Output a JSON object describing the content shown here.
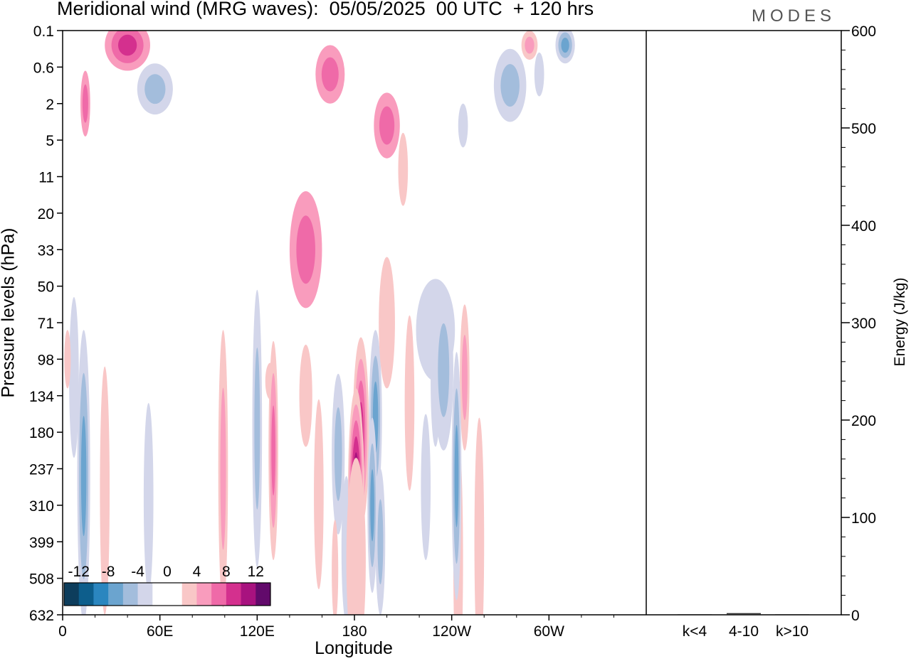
{
  "title": "Meridional wind (MRG waves):  05/05/2025  00 UTC  + 120 hrs",
  "logo": "MODES",
  "chart_data": {
    "type": "heatmap",
    "xlabel": "Longitude",
    "ylabel": "Pressure levels (hPa)",
    "y2label": "Energy (J/kg)",
    "x_ticks": [
      "0",
      "60E",
      "120E",
      "180",
      "120W",
      "60W"
    ],
    "y_ticks": [
      "0.1",
      "0.6",
      "2",
      "5",
      "11",
      "20",
      "33",
      "50",
      "71",
      "98",
      "134",
      "180",
      "237",
      "310",
      "399",
      "508",
      "632"
    ],
    "y2_ticks": [
      "0",
      "100",
      "200",
      "300",
      "400",
      "500",
      "600"
    ],
    "y2_range": [
      0,
      600
    ],
    "energy_categories": [
      "k<4",
      "4-10",
      "k>10"
    ],
    "energy_values": [
      0,
      1,
      0
    ],
    "colorbar": {
      "labels": [
        "-12",
        "-8",
        "-4",
        "0",
        "4",
        "8",
        "12"
      ],
      "colors": [
        "#0d3d5c",
        "#0d5e8c",
        "#2b86bf",
        "#6ba4cf",
        "#a3bddc",
        "#d3d6ea",
        "#ffffff",
        "#ffffff",
        "#f9c7c7",
        "#f99cbd",
        "#ef6aa8",
        "#d4308e",
        "#a8127f",
        "#620a6b"
      ]
    },
    "blobs": [
      {
        "x": 14,
        "y": 2,
        "rx": 3,
        "ry": 0.9,
        "levels": [
          2,
          3
        ]
      },
      {
        "x": 150,
        "y": 6,
        "rx": 10,
        "ry": 1.6,
        "levels": [
          2,
          3
        ]
      },
      {
        "x": 165,
        "y": 1.2,
        "rx": 9,
        "ry": 0.8,
        "levels": [
          2,
          3
        ]
      },
      {
        "x": 200,
        "y": 2.6,
        "rx": 8,
        "ry": 0.9,
        "levels": [
          2,
          3
        ]
      },
      {
        "x": 210,
        "y": 3.8,
        "rx": 3,
        "ry": 1,
        "levels": [
          1
        ]
      },
      {
        "x": 128,
        "y": 9.6,
        "rx": 3,
        "ry": 0.5,
        "levels": [
          1
        ]
      },
      {
        "x": 247,
        "y": 2.6,
        "rx": 3,
        "ry": 0.6,
        "levels": [
          -1
        ]
      },
      {
        "x": 276,
        "y": 1.5,
        "rx": 10,
        "ry": 1.0,
        "levels": [
          -1,
          -2
        ]
      },
      {
        "x": 288,
        "y": 0.4,
        "rx": 5,
        "ry": 0.4,
        "levels": [
          1,
          2
        ]
      },
      {
        "x": 294,
        "y": 1.2,
        "rx": 3,
        "ry": 0.6,
        "levels": [
          -1
        ]
      },
      {
        "x": 310,
        "y": 0.4,
        "rx": 6,
        "ry": 0.5,
        "levels": [
          -1,
          -2,
          -3
        ]
      },
      {
        "x": 230,
        "y": 8.2,
        "rx": 12,
        "ry": 1.4,
        "levels": [
          -1
        ]
      },
      {
        "x": 40,
        "y": 0.4,
        "rx": 14,
        "ry": 0.7,
        "levels": [
          2,
          3,
          4
        ]
      },
      {
        "x": 57,
        "y": 1.6,
        "rx": 11,
        "ry": 0.7,
        "levels": [
          -1,
          -2
        ]
      },
      {
        "x": 7,
        "y": 9.5,
        "rx": 3,
        "ry": 2.2,
        "levels": [
          -1
        ]
      },
      {
        "x": 3,
        "y": 9,
        "rx": 2,
        "ry": 0.8,
        "levels": [
          1
        ]
      },
      {
        "x": 13,
        "y": 12.2,
        "rx": 4,
        "ry": 4,
        "levels": [
          -1,
          -2,
          -3
        ]
      },
      {
        "x": 26,
        "y": 12.6,
        "rx": 3,
        "ry": 3.4,
        "levels": [
          1
        ]
      },
      {
        "x": 53,
        "y": 12.8,
        "rx": 3,
        "ry": 2.6,
        "levels": [
          -1
        ]
      },
      {
        "x": 99,
        "y": 12,
        "rx": 3,
        "ry": 3.8,
        "levels": [
          1,
          2
        ]
      },
      {
        "x": 120,
        "y": 10.9,
        "rx": 3,
        "ry": 3.8,
        "levels": [
          -1,
          -2
        ]
      },
      {
        "x": 130,
        "y": 11.5,
        "rx": 3,
        "ry": 3,
        "levels": [
          1,
          2,
          3
        ]
      },
      {
        "x": 150,
        "y": 10,
        "rx": 4,
        "ry": 1.4,
        "levels": [
          1
        ]
      },
      {
        "x": 158,
        "y": 12.7,
        "rx": 3,
        "ry": 2.6,
        "levels": [
          1
        ]
      },
      {
        "x": 170,
        "y": 11.6,
        "rx": 4,
        "ry": 2.2,
        "levels": [
          -1,
          -2
        ]
      },
      {
        "x": 175,
        "y": 14.2,
        "rx": 3,
        "ry": 2,
        "levels": [
          -1
        ]
      },
      {
        "x": 184,
        "y": 11,
        "rx": 5,
        "ry": 2.6,
        "levels": [
          1,
          2,
          3,
          4
        ]
      },
      {
        "x": 181,
        "y": 12.6,
        "rx": 5,
        "ry": 2.8,
        "levels": [
          1,
          2,
          3,
          4,
          5,
          6
        ]
      },
      {
        "x": 181,
        "y": 14.5,
        "rx": 6,
        "ry": 2.8,
        "levels": [
          1
        ]
      },
      {
        "x": 193,
        "y": 10.6,
        "rx": 4,
        "ry": 2.4,
        "levels": [
          -1,
          -2,
          -3
        ]
      },
      {
        "x": 196,
        "y": 14,
        "rx": 3,
        "ry": 2,
        "levels": [
          -1,
          -2
        ]
      },
      {
        "x": 191,
        "y": 13,
        "rx": 3,
        "ry": 2.4,
        "levels": [
          -1,
          -2,
          -3
        ]
      },
      {
        "x": 200,
        "y": 8,
        "rx": 5,
        "ry": 1.8,
        "levels": [
          1
        ]
      },
      {
        "x": 214,
        "y": 10.2,
        "rx": 3,
        "ry": 2.4,
        "levels": [
          1
        ]
      },
      {
        "x": 230,
        "y": 9.6,
        "rx": 3,
        "ry": 1.8,
        "levels": [
          -1
        ]
      },
      {
        "x": 235,
        "y": 9.3,
        "rx": 6,
        "ry": 2.2,
        "levels": [
          -1,
          -2
        ]
      },
      {
        "x": 248,
        "y": 9.5,
        "rx": 3,
        "ry": 2,
        "levels": [
          1,
          2
        ]
      },
      {
        "x": 224,
        "y": 12.5,
        "rx": 3,
        "ry": 2,
        "levels": [
          -1
        ]
      },
      {
        "x": 244,
        "y": 14.5,
        "rx": 3,
        "ry": 3.4,
        "levels": [
          1
        ]
      },
      {
        "x": 257,
        "y": 14,
        "rx": 3,
        "ry": 3.4,
        "levels": [
          1
        ]
      },
      {
        "x": 243,
        "y": 12.2,
        "rx": 3,
        "ry": 3.4,
        "levels": [
          -1,
          -2,
          -3
        ]
      },
      {
        "x": 168,
        "y": 14.8,
        "rx": 2,
        "ry": 1.4,
        "levels": [
          1
        ]
      }
    ]
  }
}
